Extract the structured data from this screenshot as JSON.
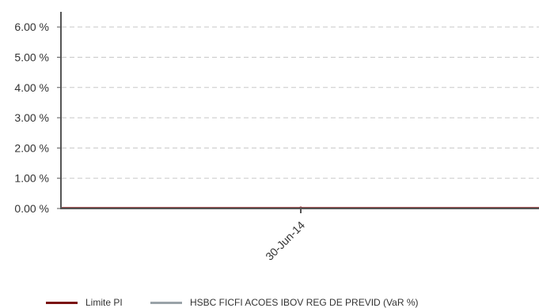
{
  "chart_data": {
    "type": "line",
    "y_tick_labels": [
      "6.00 %",
      "5.00 %",
      "4.00 %",
      "3.00 %",
      "2.00 %",
      "1.00 %",
      "0.00 %"
    ],
    "y_ticks": [
      6,
      5,
      4,
      3,
      2,
      1,
      0
    ],
    "ylim": [
      0,
      6.5
    ],
    "x_categories": [
      "30-Jun-14"
    ],
    "grid": true,
    "legend_position": "bottom-left",
    "series": [
      {
        "name": "Limite PI",
        "color": "#7a1010",
        "values": [
          0
        ]
      },
      {
        "name": "HSBC FICFI ACOES IBOV REG DE PREVID (VaR %)",
        "color": "#9aa3a8",
        "values": [
          0
        ]
      }
    ]
  }
}
